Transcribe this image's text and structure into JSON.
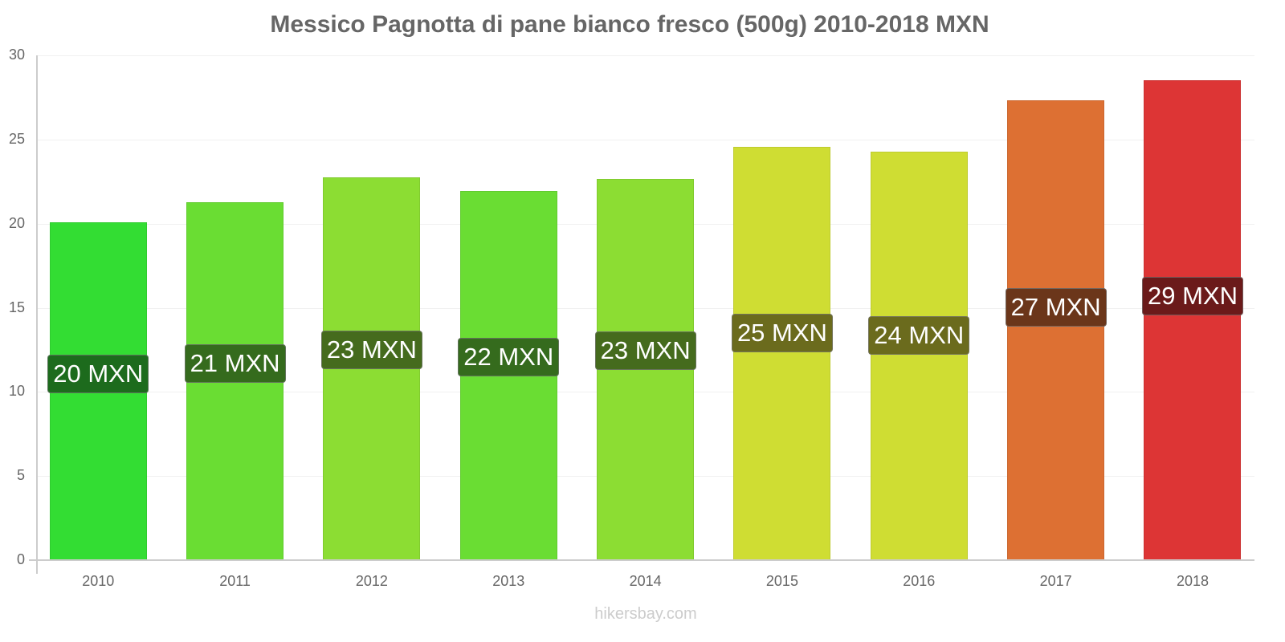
{
  "chart_data": {
    "type": "bar",
    "title": "Messico Pagnotta di pane bianco fresco (500g) 2010-2018 MXN",
    "xlabel": "",
    "ylabel": "",
    "ylim": [
      0,
      30
    ],
    "yticks": [
      0,
      5,
      10,
      15,
      20,
      25,
      30
    ],
    "grid": true,
    "legend": null,
    "categories": [
      "2010",
      "2011",
      "2012",
      "2013",
      "2014",
      "2015",
      "2016",
      "2017",
      "2018"
    ],
    "values": [
      20.08,
      21.27,
      22.75,
      21.94,
      22.65,
      24.56,
      24.27,
      27.32,
      28.52
    ],
    "data_labels": [
      "20 MXN",
      "21 MXN",
      "23 MXN",
      "22 MXN",
      "23 MXN",
      "25 MXN",
      "24 MXN",
      "27 MXN",
      "29 MXN"
    ],
    "bar_colors": [
      "#33dd33",
      "#6add33",
      "#8cdd33",
      "#6add33",
      "#8cdd33",
      "#cfdd33",
      "#cfdd33",
      "#dd7033",
      "#dd3535"
    ],
    "label_colors": [
      "#1d6b1d",
      "#356b1d",
      "#456b1d",
      "#356b1d",
      "#456b1d",
      "#6b6b1d",
      "#6b6b1d",
      "#6b361a",
      "#6b1a1a"
    ],
    "source": "hikersbay.com"
  }
}
